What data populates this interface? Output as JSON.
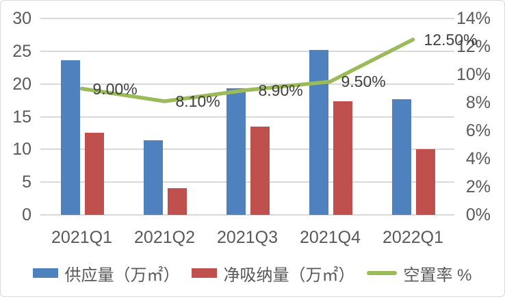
{
  "chart_data": {
    "type": "bar",
    "subtype": "combo-bar-line",
    "title": "",
    "categories": [
      "2021Q1",
      "2021Q2",
      "2021Q3",
      "2021Q4",
      "2022Q1"
    ],
    "series": [
      {
        "name": "供应量（万㎡）",
        "type": "bar",
        "axis": "left",
        "color": "#4E81BD",
        "values": [
          23.6,
          11.4,
          19.3,
          25.2,
          17.7
        ]
      },
      {
        "name": "净吸纳量（万㎡）",
        "type": "bar",
        "axis": "left",
        "color": "#C0504D",
        "values": [
          12.5,
          4.1,
          13.5,
          17.3,
          10.0
        ]
      },
      {
        "name": "空置率 %",
        "type": "line",
        "axis": "right",
        "color": "#9BBB59",
        "values": [
          9.0,
          8.1,
          8.9,
          9.5,
          12.5
        ],
        "labels": [
          "9.00%",
          "8.10%",
          "8.90%",
          "9.50%",
          "12.50%"
        ]
      }
    ],
    "left_axis": {
      "min": 0,
      "max": 30,
      "step": 5,
      "ticks": [
        "30",
        "25",
        "20",
        "15",
        "10",
        "5",
        "0"
      ]
    },
    "right_axis": {
      "min": 0,
      "max": 14,
      "step": 2,
      "ticks": [
        "14%",
        "12%",
        "10%",
        "8%",
        "6%",
        "4%",
        "2%",
        "0%"
      ]
    },
    "grid": true,
    "legend_position": "bottom"
  },
  "colors": {
    "background": "#FFFFFF",
    "border": "#D9D9D9",
    "grid": "#D9D9D9",
    "axis_text": "#595959",
    "data_label": "#3F3F3F",
    "bar_blue": "#4E81BD",
    "bar_red": "#C0504D",
    "line_green": "#9BBB59"
  }
}
